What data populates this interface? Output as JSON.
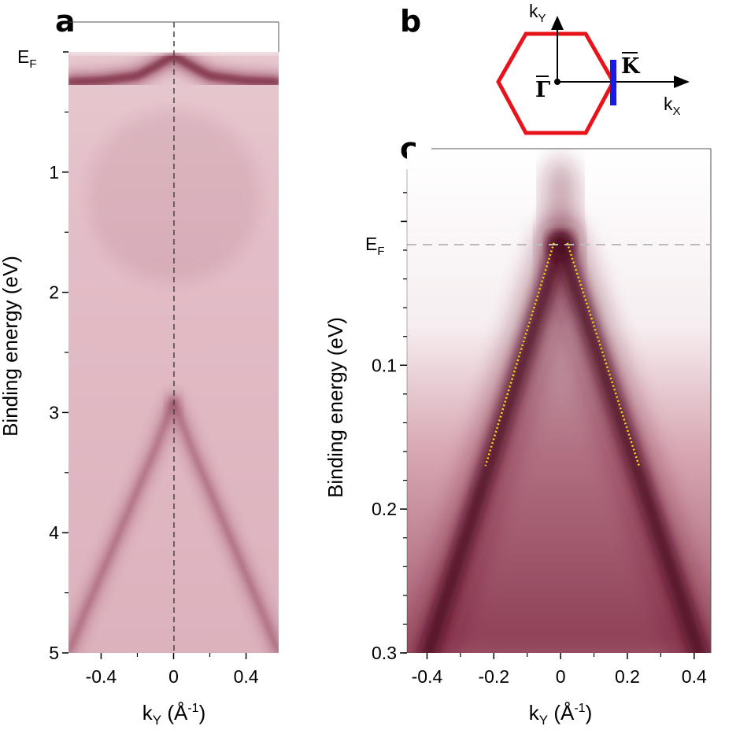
{
  "figure": {
    "panels": {
      "a": {
        "letter": "a",
        "fermi_label": "E",
        "fermi_sub": "F",
        "ylabel": "Binding energy (eV)",
        "xlabel_main": "k",
        "xlabel_sub": "Y",
        "xlabel_rest": " (Å",
        "xlabel_exp": "-1",
        "xlabel_close": ")"
      },
      "b": {
        "letter": "b",
        "ky_main": "k",
        "ky_sub": "Y",
        "kx_main": "k",
        "kx_sub": "X",
        "gamma_label": "Γ",
        "k_label": "K",
        "hexagon_color": "#e8141b",
        "cut_color": "#1a1ae6"
      },
      "c": {
        "letter": "c",
        "fermi_label": "E",
        "fermi_sub": "F",
        "ylabel": "Binding energy (eV)",
        "xlabel_main": "k",
        "xlabel_sub": "Y",
        "xlabel_rest": " (Å",
        "xlabel_exp": "-1",
        "xlabel_close": ")",
        "fit_color": "#ffd21a"
      }
    },
    "colormap": {
      "low": "#ffffff",
      "high": "#6b0f2a"
    }
  },
  "chart_data": [
    {
      "panel": "a",
      "type": "heatmap",
      "title": "",
      "xlabel": "kY (Å-1)",
      "ylabel": "Binding energy (eV)",
      "xlim": [
        -0.58,
        0.58
      ],
      "ylim": [
        5,
        0
      ],
      "x_ticks": [
        -0.4,
        0,
        0.4
      ],
      "x_tick_labels": [
        "-0.4",
        "0",
        "0.4"
      ],
      "y_ticks": [
        1,
        2,
        3,
        4,
        5
      ],
      "y_tick_labels": [
        "1",
        "2",
        "3",
        "4",
        "5"
      ],
      "fermi_level_ev": 0,
      "k_zero_line": true,
      "bands": [
        {
          "name": "top band",
          "k": [
            -0.58,
            -0.4,
            -0.2,
            -0.1,
            0,
            0.1,
            0.2,
            0.4,
            0.58
          ],
          "energy": [
            0.25,
            0.24,
            0.2,
            0.12,
            0.03,
            0.12,
            0.2,
            0.24,
            0.25
          ]
        },
        {
          "name": "cone left branch",
          "k": [
            0,
            -0.1,
            -0.2,
            -0.3,
            -0.4,
            -0.5,
            -0.58
          ],
          "energy": [
            2.9,
            3.3,
            3.65,
            4.0,
            4.35,
            4.7,
            5.0
          ]
        },
        {
          "name": "cone right branch",
          "k": [
            0,
            0.1,
            0.2,
            0.3,
            0.4,
            0.5,
            0.58
          ],
          "energy": [
            2.9,
            3.3,
            3.65,
            4.0,
            4.35,
            4.7,
            5.0
          ]
        }
      ]
    },
    {
      "panel": "c",
      "type": "heatmap",
      "title": "",
      "xlabel": "kY (Å-1)",
      "ylabel": "Binding energy (eV)",
      "xlim": [
        -0.46,
        0.45
      ],
      "ylim": [
        0.3,
        -0.05
      ],
      "x_ticks": [
        -0.4,
        -0.2,
        0,
        0.2,
        0.4
      ],
      "x_tick_labels": [
        "-0.4",
        "-0.2",
        "0",
        "0.2",
        "0.4"
      ],
      "y_ticks": [
        0.1,
        0.2,
        0.3
      ],
      "y_tick_labels": [
        "0.1",
        "0.2",
        "0.3"
      ],
      "y_minor_step": 0.02,
      "fermi_level_ev": 0,
      "dirac_point_ev": 0.015,
      "fits": [
        {
          "name": "left fit",
          "k": [
            -0.02,
            -0.225
          ],
          "energy": [
            0.015,
            0.17
          ]
        },
        {
          "name": "right fit",
          "k": [
            0.02,
            0.235
          ],
          "energy": [
            0.015,
            0.17
          ]
        }
      ]
    }
  ]
}
